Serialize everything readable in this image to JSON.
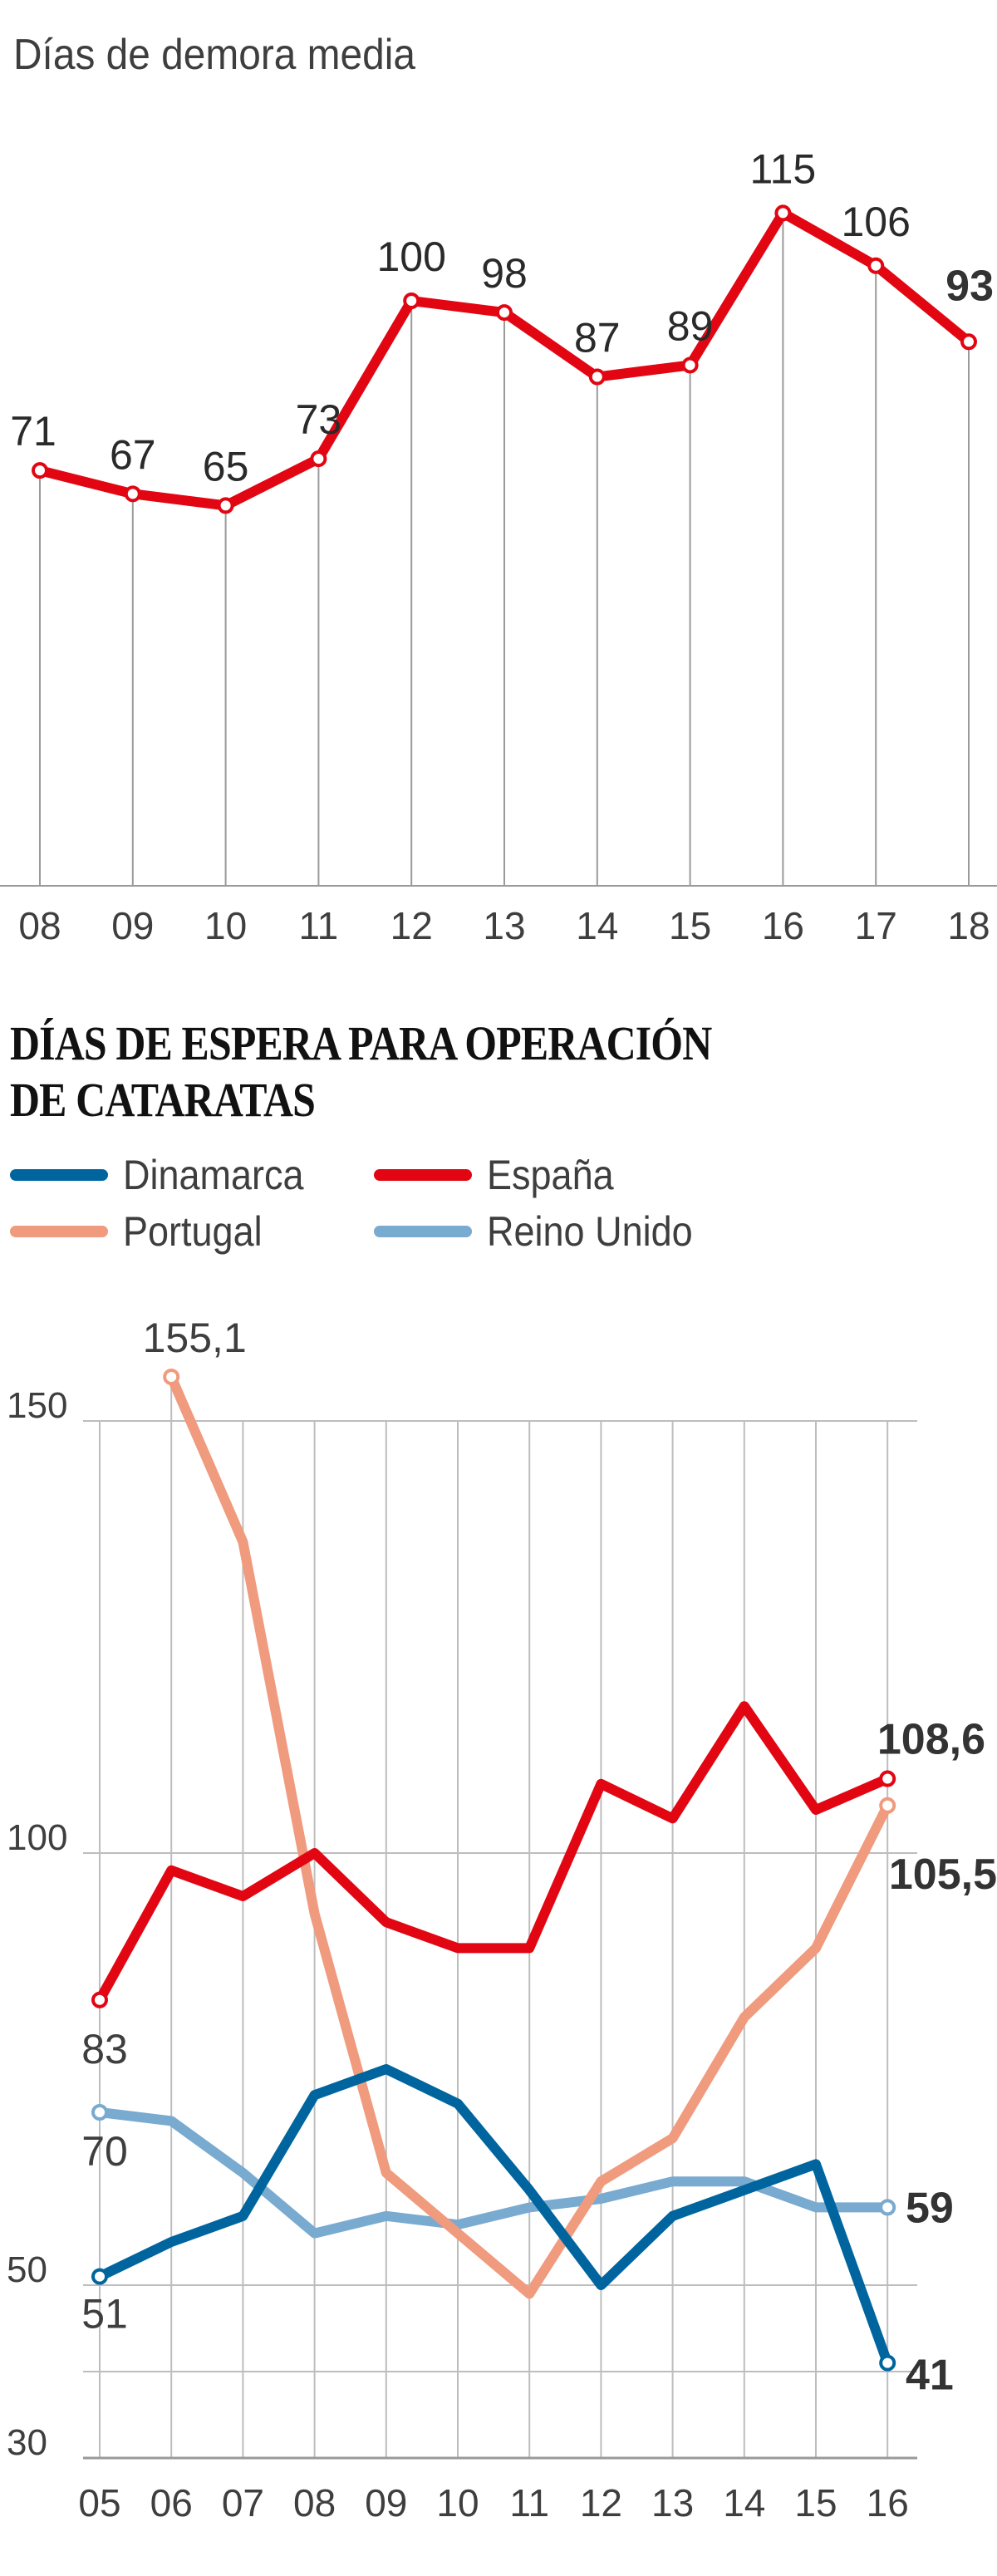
{
  "chart_data": [
    {
      "type": "line",
      "title": "",
      "subtitle": "Días de demora media",
      "xlabel": "",
      "ylabel": "",
      "categories": [
        "08",
        "09",
        "10",
        "11",
        "12",
        "13",
        "14",
        "15",
        "16",
        "17",
        "18"
      ],
      "series": [
        {
          "name": "Días de demora media",
          "color": "#e20613",
          "values": [
            71,
            67,
            65,
            73,
            100,
            98,
            87,
            89,
            115,
            106,
            93
          ],
          "labels": [
            "71",
            "67",
            "65",
            "73",
            "100",
            "98",
            "87",
            "89",
            "115",
            "106",
            "93"
          ],
          "highlight_last": true
        }
      ],
      "ylim": [
        0,
        120
      ],
      "grid": "vertical drop lines",
      "legend": "none"
    },
    {
      "type": "line",
      "title": "DÍAS DE ESPERA PARA OPERACIÓN DE CATARATAS",
      "title_lines": [
        "DÍAS DE ESPERA PARA OPERACIÓN",
        "DE CATARATAS"
      ],
      "xlabel": "",
      "ylabel": "",
      "categories": [
        "05",
        "06",
        "07",
        "08",
        "09",
        "10",
        "11",
        "12",
        "13",
        "14",
        "15",
        "16"
      ],
      "yticks": [
        {
          "value": 150,
          "label": "150"
        },
        {
          "value": 100,
          "label": "100"
        },
        {
          "value": 50,
          "label": "50"
        },
        {
          "value": 40,
          "label": ""
        },
        {
          "value": 30,
          "label": "30"
        }
      ],
      "ylim": [
        30,
        160
      ],
      "grid": "horizontal and vertical",
      "legend": "top-left",
      "series": [
        {
          "name": "Dinamarca",
          "color": "#00659e",
          "values": [
            51,
            55,
            58,
            72,
            75,
            71,
            61,
            50,
            58,
            61,
            64,
            41
          ],
          "start_label": "51",
          "end_label": "41"
        },
        {
          "name": "España",
          "color": "#e20613",
          "values": [
            83,
            98,
            95,
            100,
            92,
            89,
            89,
            108,
            104,
            117,
            105,
            108.6
          ],
          "start_label": "83",
          "end_label": "108,6"
        },
        {
          "name": "Portugal",
          "color": "#f09a7e",
          "values": [
            null,
            155.1,
            136,
            93,
            63,
            56,
            49,
            62,
            67,
            81,
            89,
            105.5
          ],
          "start_label": "155,1",
          "end_label": "105,5"
        },
        {
          "name": "Reino Unido",
          "color": "#79aad0",
          "values": [
            70,
            69,
            63,
            56,
            58,
            57,
            59,
            60,
            62,
            62,
            59,
            59
          ],
          "start_label": "70",
          "end_label": "59"
        }
      ]
    }
  ],
  "legend": [
    {
      "label": "Dinamarca",
      "color": "#00659e"
    },
    {
      "label": "España",
      "color": "#e20613"
    },
    {
      "label": "Portugal",
      "color": "#f09a7e"
    },
    {
      "label": "Reino Unido",
      "color": "#79aad0"
    }
  ]
}
